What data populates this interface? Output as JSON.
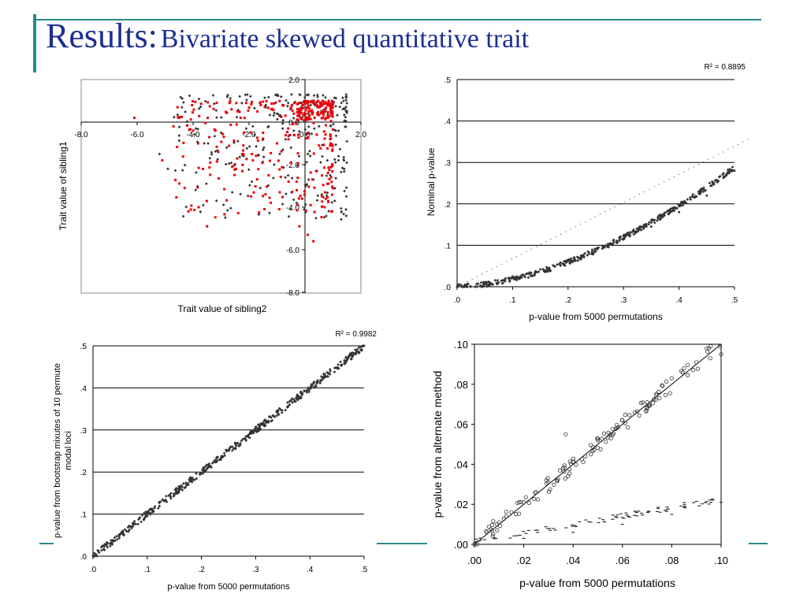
{
  "slide": {
    "title_main": "Results:",
    "title_sub": "Bivariate skewed quantitative trait"
  },
  "colors": {
    "title": "#1c2f8f",
    "accent_line": "#2a8a8a",
    "series_red": "#e8000a",
    "series_dark": "#333333"
  },
  "chart_data": [
    {
      "type": "scatter",
      "xlabel": "Trait value of sibling2",
      "ylabel": "Trait value of sibling1",
      "xlim": [
        -8.0,
        2.0
      ],
      "ylim": [
        -8.0,
        2.0
      ],
      "x_ticks": [
        "-8.0",
        "-6.0",
        "-4.0",
        "-2.0",
        "0.0",
        "2.0"
      ],
      "y_ticks": [
        "2.0",
        "0.0",
        "-2.0",
        "-4.0",
        "-6.0",
        "-8.0"
      ],
      "grid": false,
      "series": [
        {
          "color": "#e8000a",
          "marker": "square",
          "points": [
            [
              -6.1,
              0.2
            ],
            [
              -5.1,
              -1.8
            ],
            [
              -4.7,
              -0.2
            ],
            [
              -4.5,
              0.2
            ],
            [
              -4.3,
              -3.1
            ],
            [
              -4.0,
              -0.4
            ],
            [
              -3.8,
              -4.0
            ],
            [
              -3.5,
              -4.9
            ],
            [
              -3.2,
              -0.4
            ],
            [
              -3.1,
              -1.4
            ],
            [
              -2.9,
              -0.7
            ],
            [
              -2.7,
              0.9
            ],
            [
              -2.6,
              -2.1
            ],
            [
              -2.3,
              0.2
            ],
            [
              -2.1,
              0.9
            ],
            [
              -1.9,
              -1.5
            ],
            [
              -1.7,
              0.5
            ],
            [
              -1.5,
              -0.5
            ],
            [
              -1.3,
              -2.5
            ],
            [
              -1.2,
              0.6
            ],
            [
              -1.0,
              -1.0
            ],
            [
              -0.9,
              -3.3
            ],
            [
              -0.8,
              0.8
            ],
            [
              -0.6,
              -0.3
            ],
            [
              -0.5,
              -1.9
            ],
            [
              -0.4,
              0.4
            ],
            [
              -0.3,
              -2.8
            ],
            [
              -0.2,
              -4.9
            ],
            [
              -0.1,
              -3.6
            ],
            [
              0.0,
              0.1
            ],
            [
              0.1,
              -5.3
            ],
            [
              0.2,
              -3.9
            ],
            [
              0.3,
              -5.6
            ],
            [
              0.4,
              -2.3
            ],
            [
              0.5,
              -1.1
            ],
            [
              0.6,
              0.5
            ],
            [
              0.7,
              -4.0
            ],
            [
              0.8,
              -2.9
            ],
            [
              0.9,
              -0.8
            ],
            [
              -2.2,
              -1.1
            ],
            [
              -0.7,
              0.3
            ],
            [
              0.3,
              1.0
            ],
            [
              0.7,
              0.9
            ]
          ]
        },
        {
          "color": "#333333",
          "marker": "diamond",
          "points": [
            [
              -5.2,
              -1.5
            ],
            [
              -4.9,
              -2.2
            ],
            [
              -3.9,
              -0.3
            ],
            [
              -3.6,
              -1.0
            ],
            [
              -3.4,
              -1.7
            ],
            [
              -3.0,
              -0.5
            ],
            [
              -2.8,
              -1.2
            ],
            [
              -2.6,
              -3.3
            ],
            [
              -2.4,
              -0.9
            ],
            [
              -2.2,
              -1.6
            ],
            [
              -2.1,
              -0.3
            ],
            [
              -1.9,
              -2.8
            ],
            [
              -1.8,
              -0.6
            ],
            [
              -1.6,
              -3.1
            ],
            [
              -1.5,
              -1.3
            ],
            [
              -1.4,
              0.7
            ],
            [
              -1.3,
              -0.2
            ],
            [
              -1.1,
              -2.0
            ],
            [
              -1.0,
              0.4
            ],
            [
              -0.9,
              -1.5
            ],
            [
              -0.8,
              -0.3
            ],
            [
              -0.7,
              -2.6
            ],
            [
              -0.6,
              0.9
            ],
            [
              -0.5,
              -1.2
            ],
            [
              -0.4,
              -0.6
            ],
            [
              -0.3,
              -3.8
            ],
            [
              -0.2,
              0.6
            ],
            [
              0.0,
              -2.0
            ],
            [
              0.1,
              -1.5
            ],
            [
              0.2,
              0.8
            ],
            [
              0.3,
              -2.7
            ],
            [
              0.5,
              -0.2
            ],
            [
              0.6,
              -3.4
            ],
            [
              0.8,
              -1.8
            ],
            [
              0.9,
              -2.5
            ],
            [
              1.1,
              -0.4
            ],
            [
              1.2,
              -1.6
            ],
            [
              1.3,
              0.9
            ],
            [
              1.4,
              -2.2
            ],
            [
              1.5,
              -0.9
            ]
          ]
        }
      ]
    },
    {
      "type": "scatter",
      "annotation": "R² = 0.8895",
      "xlabel": "p-value from 5000 permutations",
      "ylabel": "Nominal p-value",
      "xlim": [
        0,
        0.5
      ],
      "ylim": [
        0,
        0.5
      ],
      "x_ticks": [
        ".0",
        ".1",
        ".2",
        ".3",
        ".4",
        ".5"
      ],
      "y_ticks": [
        ".5",
        ".4",
        ".3",
        ".2",
        ".1",
        ".0"
      ],
      "grid": true,
      "series": [
        {
          "color": "#333333",
          "marker": "diamond",
          "points": [
            [
              0.0,
              0.0
            ],
            [
              0.05,
              0.011
            ],
            [
              0.1,
              0.025
            ],
            [
              0.15,
              0.042
            ],
            [
              0.2,
              0.065
            ],
            [
              0.25,
              0.085
            ],
            [
              0.3,
              0.115
            ],
            [
              0.35,
              0.145
            ],
            [
              0.4,
              0.18
            ],
            [
              0.45,
              0.22
            ],
            [
              0.5,
              0.28
            ]
          ]
        },
        {
          "color": "#333333",
          "marker": "dotted-line",
          "points": [
            [
              0.0,
              0.0
            ],
            [
              0.5,
              0.36
            ]
          ]
        }
      ]
    },
    {
      "type": "scatter",
      "annotation": "R² = 0.9982",
      "xlabel": "p-value from 5000 permutations",
      "ylabel": "p-value from bootstrap mixutes of 10 permute modal loci",
      "xlim": [
        0,
        0.5
      ],
      "ylim": [
        0,
        0.5
      ],
      "x_ticks": [
        ".0",
        ".1",
        ".2",
        ".3",
        ".4",
        ".5"
      ],
      "y_ticks": [
        ".5",
        ".4",
        ".3",
        ".2",
        ".1",
        ".0"
      ],
      "grid": true,
      "series": [
        {
          "color": "#333333",
          "marker": "diamond",
          "points": [
            [
              0.0,
              0.0
            ],
            [
              0.5,
              0.5
            ]
          ]
        }
      ]
    },
    {
      "type": "scatter",
      "xlabel": "p-value from 5000 permutations",
      "ylabel": "p-value from alternate method",
      "xlim": [
        0,
        0.1
      ],
      "ylim": [
        0,
        0.1
      ],
      "x_ticks": [
        ".00",
        ".02",
        ".04",
        ".06",
        ".08",
        ".10"
      ],
      "y_ticks": [
        ".10",
        ".08",
        ".06",
        ".04",
        ".02",
        ".00"
      ],
      "grid": false,
      "series": [
        {
          "color": "#333333",
          "marker": "open-circle",
          "points": [
            [
              0.0,
              0.0
            ],
            [
              0.005,
              0.006
            ],
            [
              0.01,
              0.011
            ],
            [
              0.015,
              0.016
            ],
            [
              0.02,
              0.021
            ],
            [
              0.025,
              0.026
            ],
            [
              0.03,
              0.031
            ],
            [
              0.037,
              0.055
            ],
            [
              0.04,
              0.041
            ],
            [
              0.045,
              0.044
            ],
            [
              0.05,
              0.052
            ],
            [
              0.055,
              0.055
            ],
            [
              0.06,
              0.062
            ],
            [
              0.065,
              0.066
            ],
            [
              0.07,
              0.071
            ],
            [
              0.075,
              0.073
            ],
            [
              0.08,
              0.083
            ],
            [
              0.085,
              0.088
            ],
            [
              0.09,
              0.091
            ],
            [
              0.095,
              0.098
            ],
            [
              0.1,
              0.095
            ]
          ]
        },
        {
          "color": "#333333",
          "marker": "line",
          "points": [
            [
              0.0,
              0.0
            ],
            [
              0.1,
              0.1
            ]
          ]
        },
        {
          "color": "#333333",
          "marker": "dash",
          "points": [
            [
              0.0,
              0.0
            ],
            [
              0.02,
              0.003
            ],
            [
              0.04,
              0.006
            ],
            [
              0.06,
              0.01
            ],
            [
              0.08,
              0.015
            ],
            [
              0.1,
              0.021
            ]
          ]
        }
      ]
    }
  ]
}
